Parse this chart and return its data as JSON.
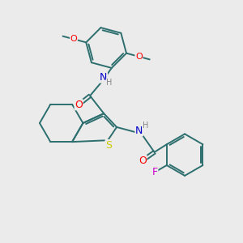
{
  "bg_color": "#ebebeb",
  "bond_color": "#2d6e6e",
  "atom_colors": {
    "O": "#ff0000",
    "N": "#0000cc",
    "S": "#cccc00",
    "F": "#cc00cc",
    "H": "#888888",
    "C": "#2d6e6e"
  },
  "figsize": [
    3.0,
    3.0
  ],
  "dpi": 100
}
